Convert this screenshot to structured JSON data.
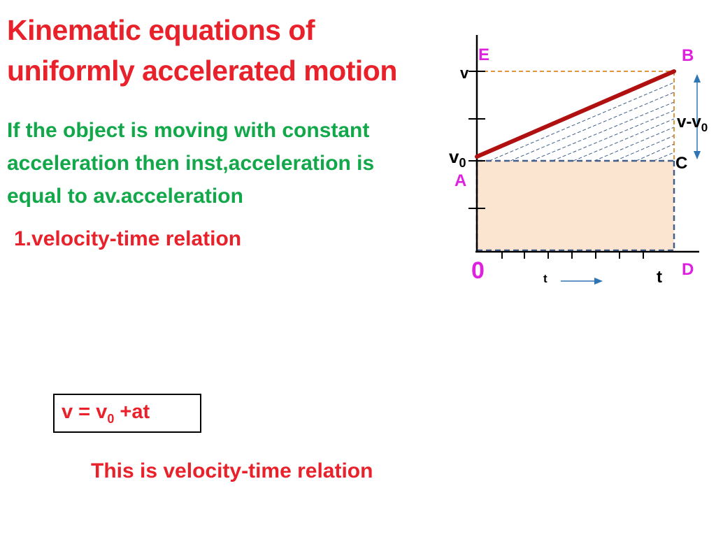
{
  "title": {
    "line1": "Kinematic equations of",
    "line2": "uniformly accelerated motion"
  },
  "intro": {
    "line1": "If the object is moving with constant",
    "line2": "acceleration then inst,acceleration is",
    "line3": "equal to av.acceleration"
  },
  "section_heading": "1.velocity-time relation",
  "formula": {
    "lhs": "v = v",
    "sub": "0",
    "rhs": " +at"
  },
  "conclusion": "This is velocity-time relation",
  "graph": {
    "label_v": "v",
    "label_v0_main": "v",
    "label_v0_sub": "0",
    "point_E": "E",
    "point_B": "B",
    "point_A": "A",
    "point_C": "C",
    "point_D": "D",
    "origin": "0",
    "label_t_small": "t",
    "label_t_end": "t",
    "diff_main": "v-v",
    "diff_sub": "0"
  },
  "colors": {
    "title_red": "#e8212b",
    "text_green": "#12a84a",
    "point_magenta": "#e020e0",
    "line_dark_red": "#b01010",
    "rect_fill": "#fbe4d0",
    "dashed_orange": "#d9882b",
    "dashed_blue": "#44608a",
    "arrow_blue": "#2e75b6"
  }
}
